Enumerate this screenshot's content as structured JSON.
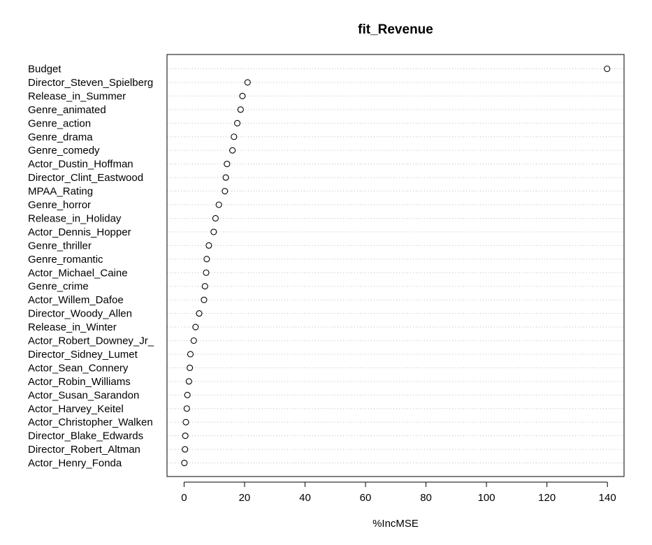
{
  "chart_data": {
    "type": "scatter",
    "title": "fit_Revenue",
    "xlabel": "%IncMSE",
    "ylabel": "",
    "xlim": [
      0,
      140
    ],
    "x_ticks": [
      "0",
      "20",
      "40",
      "60",
      "80",
      "100",
      "120",
      "140"
    ],
    "grid": "dotted horizontal lines per variable",
    "categories": [
      "Budget",
      "Director_Steven_Spielberg",
      "Release_in_Summer",
      "Genre_animated",
      "Genre_action",
      "Genre_drama",
      "Genre_comedy",
      "Actor_Dustin_Hoffman",
      "Director_Clint_Eastwood",
      "MPAA_Rating",
      "Genre_horror",
      "Release_in_Holiday",
      "Actor_Dennis_Hopper",
      "Genre_thriller",
      "Genre_romantic",
      "Actor_Michael_Caine",
      "Genre_crime",
      "Actor_Willem_Dafoe",
      "Director_Woody_Allen",
      "Release_in_Winter",
      "Actor_Robert_Downey_Jr_",
      "Director_Sidney_Lumet",
      "Actor_Sean_Connery",
      "Actor_Robin_Williams",
      "Actor_Susan_Sarandon",
      "Actor_Harvey_Keitel",
      "Actor_Christopher_Walken",
      "Director_Blake_Edwards",
      "Director_Robert_Altman",
      "Actor_Henry_Fonda"
    ],
    "values": [
      139.9,
      21.0,
      19.3,
      18.7,
      17.6,
      16.5,
      16.0,
      14.2,
      13.8,
      13.5,
      11.5,
      10.4,
      9.8,
      8.2,
      7.5,
      7.3,
      6.9,
      6.6,
      5.0,
      3.8,
      3.2,
      2.1,
      1.9,
      1.6,
      1.1,
      0.9,
      0.6,
      0.4,
      0.3,
      0.1
    ]
  }
}
